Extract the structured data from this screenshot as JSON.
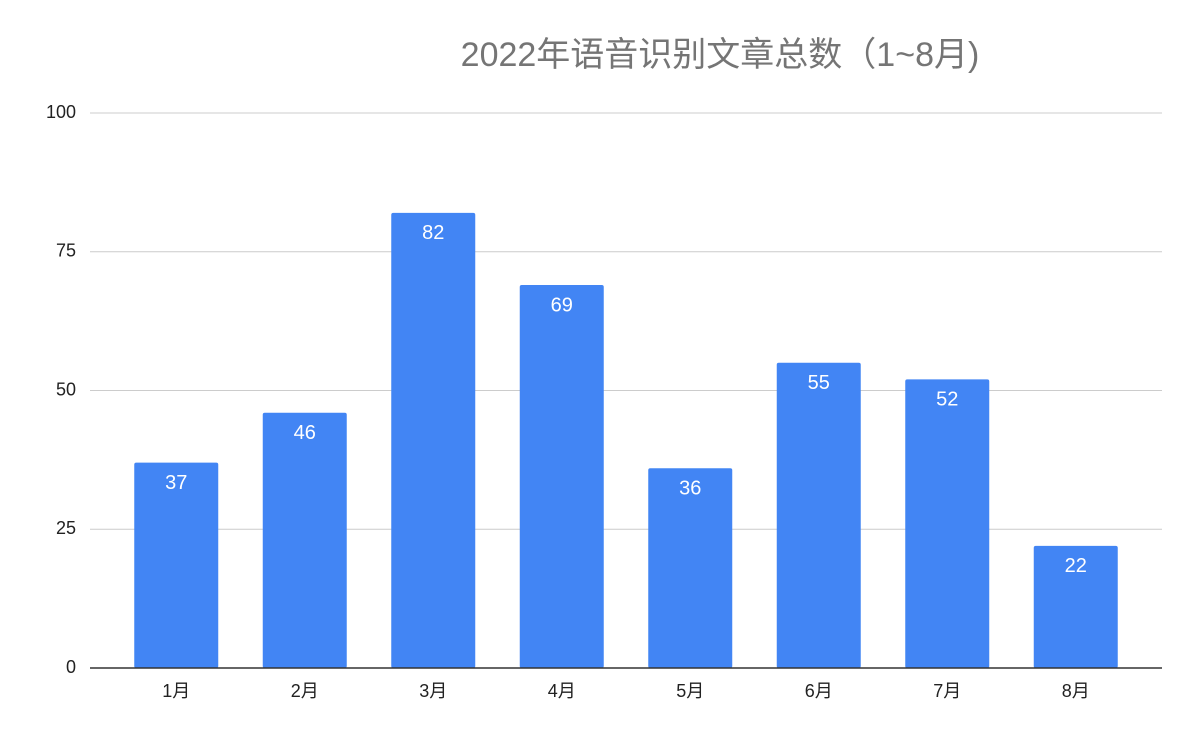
{
  "chart_data": {
    "type": "bar",
    "title": "2022年语音识别文章总数（1~8月)",
    "categories": [
      "1月",
      "2月",
      "3月",
      "4月",
      "5月",
      "6月",
      "7月",
      "8月"
    ],
    "values": [
      37,
      46,
      82,
      69,
      36,
      55,
      52,
      22
    ],
    "color": "#4285f4",
    "ylim": [
      0,
      100
    ],
    "yticks": [
      0,
      25,
      50,
      75,
      100
    ],
    "grid": true
  }
}
